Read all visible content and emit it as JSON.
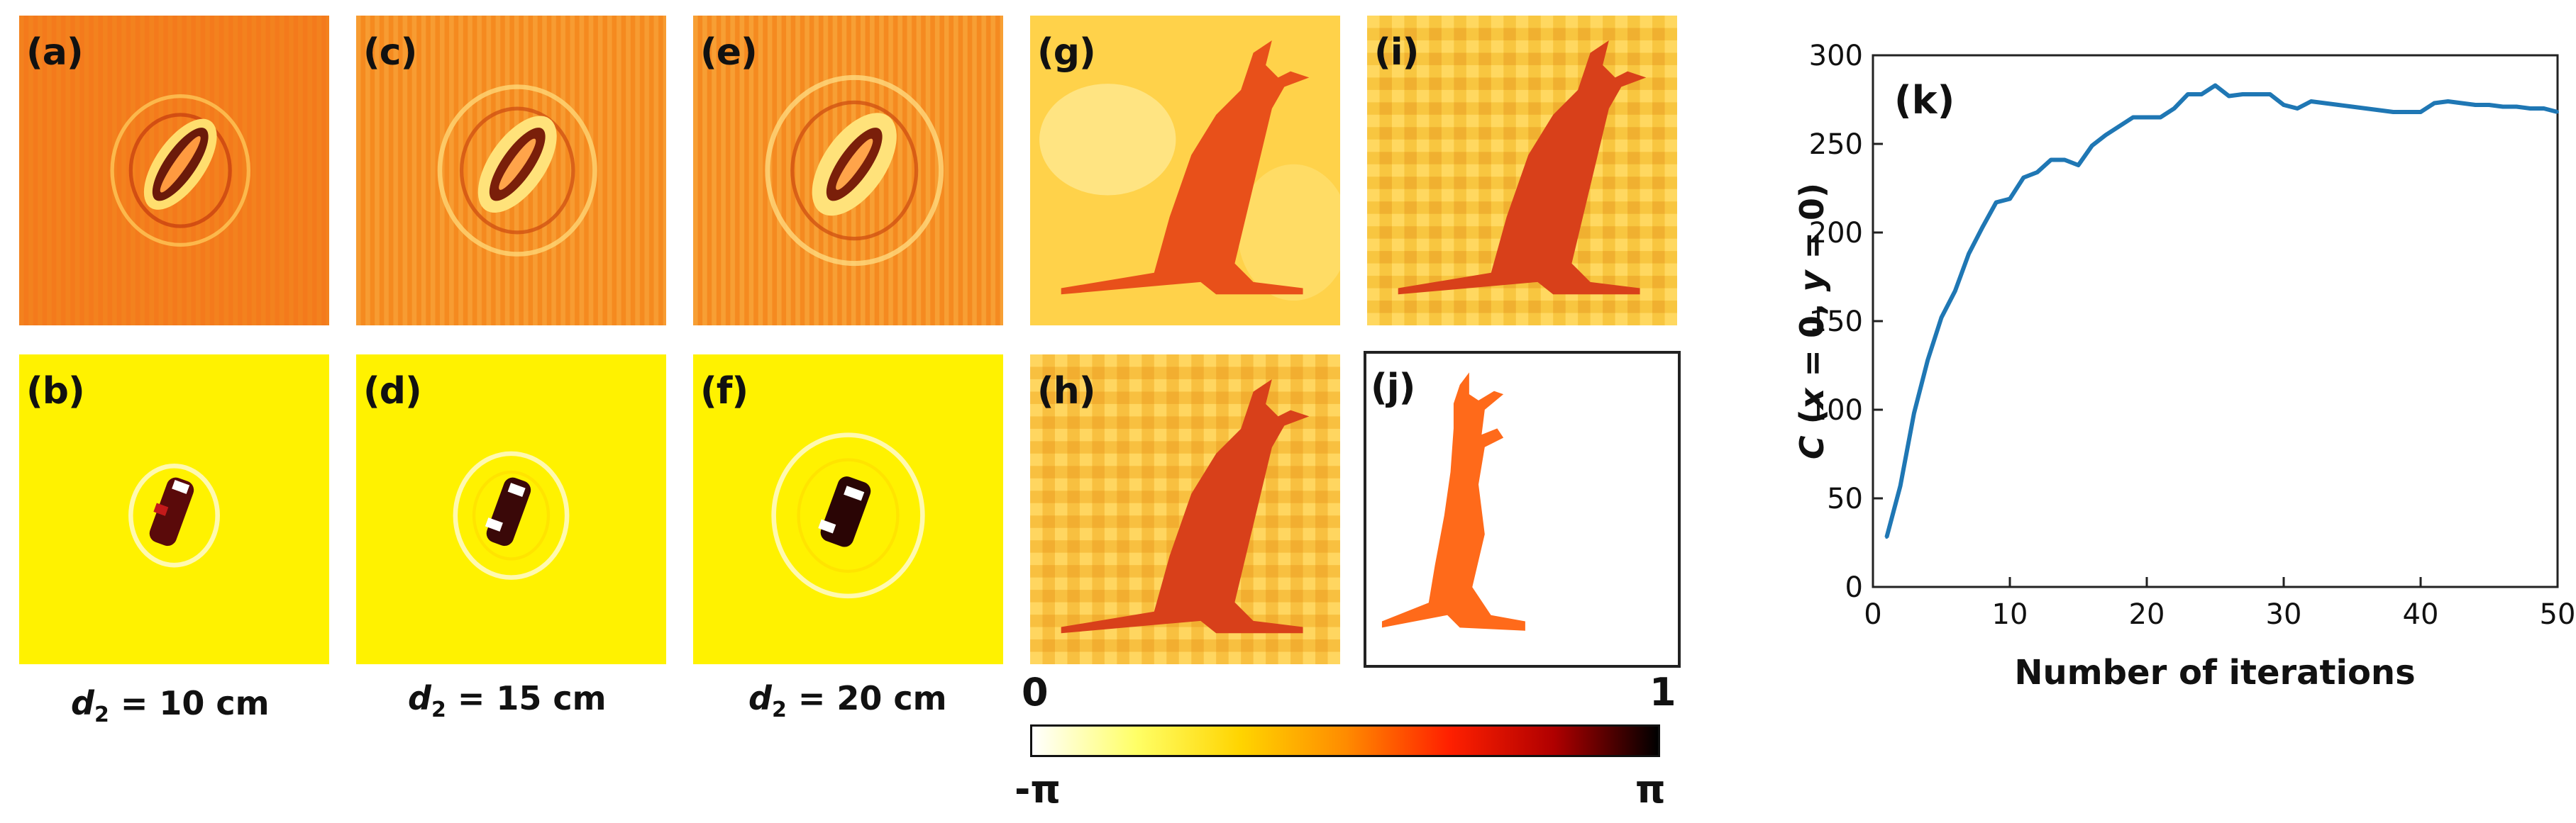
{
  "panels": {
    "a": "(a)",
    "b": "(b)",
    "c": "(c)",
    "d": "(d)",
    "e": "(e)",
    "f": "(f)",
    "g": "(g)",
    "h": "(h)",
    "i": "(i)",
    "j": "(j)",
    "k": "(k)"
  },
  "distance_labels": [
    {
      "symbol": "d",
      "sub": "2",
      "text": " = 10 cm"
    },
    {
      "symbol": "d",
      "sub": "2",
      "text": " = 15 cm"
    },
    {
      "symbol": "d",
      "sub": "2",
      "text": " = 20 cm"
    }
  ],
  "colorbar": {
    "top_left": "0",
    "top_right": "1",
    "bottom_left": "-π",
    "bottom_right": "π",
    "colors": [
      "#ffffff",
      "#ffff66",
      "#ffd400",
      "#ff8c00",
      "#ff2000",
      "#b00000",
      "#000000"
    ]
  },
  "colors": {
    "silhouette": "#ff6a1a",
    "line": "#1f77b4"
  },
  "chart_data": {
    "type": "line",
    "title": "",
    "xlabel": "Number of iterations",
    "ylabel": "C (x = 0, y = 0)",
    "xlim": [
      0,
      50
    ],
    "ylim": [
      0,
      300
    ],
    "xticks": [
      0,
      10,
      20,
      30,
      40,
      50
    ],
    "yticks": [
      0,
      50,
      100,
      150,
      200,
      250,
      300
    ],
    "grid": false,
    "series": [
      {
        "x": [
          1,
          2,
          3,
          4,
          5,
          6,
          7,
          8,
          9,
          10,
          11,
          12,
          13,
          14,
          15,
          16,
          17,
          18,
          19,
          20,
          21,
          22,
          23,
          24,
          25,
          26,
          27,
          28,
          29,
          30,
          31,
          32,
          33,
          34,
          35,
          36,
          37,
          38,
          39,
          40,
          41,
          42,
          43,
          44,
          45,
          46,
          47,
          48,
          49,
          50
        ],
        "values": [
          28,
          57,
          98,
          128,
          152,
          167,
          188,
          203,
          217,
          219,
          231,
          234,
          241,
          241,
          238,
          249,
          255,
          260,
          265,
          265,
          265,
          270,
          278,
          278,
          283,
          277,
          278,
          278,
          278,
          272,
          270,
          274,
          273,
          272,
          271,
          270,
          269,
          268,
          268,
          268,
          273,
          274,
          273,
          272,
          272,
          271,
          271,
          270,
          270,
          268
        ]
      }
    ]
  }
}
